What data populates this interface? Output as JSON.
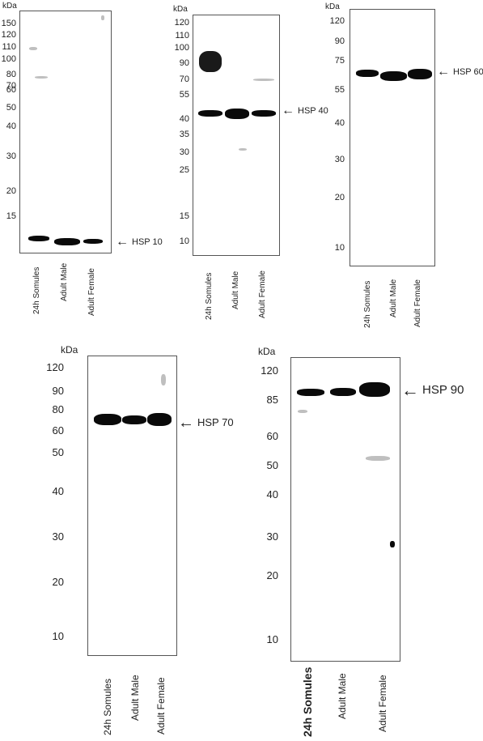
{
  "panels": [
    {
      "unit": "kDa",
      "ticks": [
        "150",
        "120",
        "110",
        "100",
        "80",
        "70",
        "60",
        "50",
        "40",
        "30",
        "20",
        "15"
      ],
      "protein": "HSP 10",
      "lanes": [
        "24h Somules",
        "Adult Male",
        "Adult Female"
      ]
    },
    {
      "unit": "kDa",
      "ticks": [
        "120",
        "110",
        "100",
        "90",
        "70",
        "55",
        "40",
        "35",
        "30",
        "25",
        "15",
        "10"
      ],
      "protein": "HSP 40",
      "lanes": [
        "24h Somules",
        "Adult Male",
        "Adult Female"
      ]
    },
    {
      "unit": "kDa",
      "ticks": [
        "120",
        "90",
        "75",
        "55",
        "40",
        "30",
        "20",
        "10"
      ],
      "protein": "HSP 60",
      "lanes": [
        "24h Somules",
        "Adult Male",
        "Adult Female"
      ]
    },
    {
      "unit": "kDa",
      "ticks": [
        "120",
        "90",
        "80",
        "60",
        "50",
        "40",
        "30",
        "20",
        "10"
      ],
      "protein": "HSP 70",
      "lanes": [
        "24h Somules",
        "Adult Male",
        "Adult Female"
      ]
    },
    {
      "unit": "kDa",
      "ticks": [
        "120",
        "85",
        "60",
        "50",
        "40",
        "30",
        "20",
        "10"
      ],
      "protein": "HSP 90",
      "lanes": [
        "24h Somules",
        "Adult Male",
        "Adult Female"
      ]
    }
  ],
  "icons": {
    "arrow": "left-arrow-icon"
  }
}
